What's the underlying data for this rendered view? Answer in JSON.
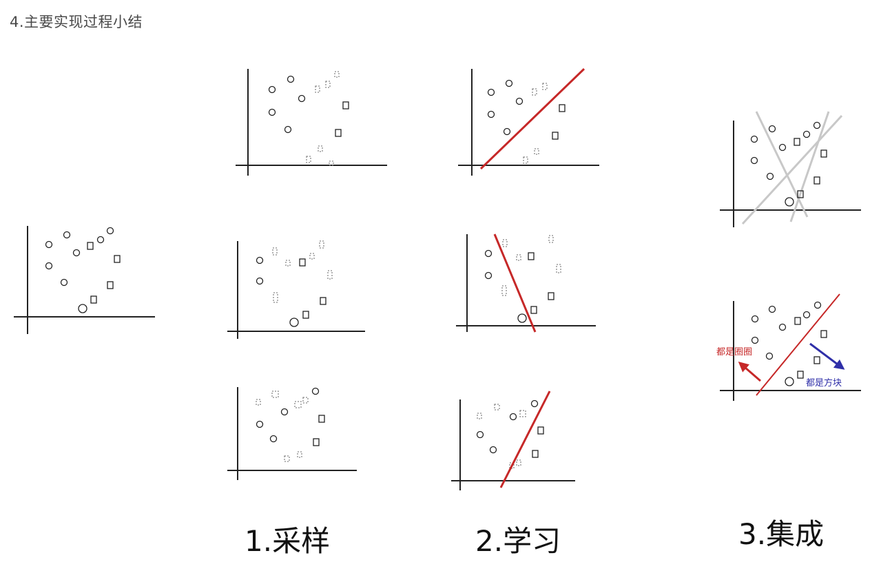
{
  "heading": "4.主要实现过程小结",
  "steps": {
    "sampling": "1.采样",
    "learning": "2.学习",
    "ensemble": "3.集成"
  },
  "annotations": {
    "circles_side": "都是圈圈",
    "squares_side": "都是方块"
  },
  "colors": {
    "classifier_line": "#c62828",
    "weak_line": "#c8c8c8",
    "circle_arrow": "#c62828",
    "square_arrow": "#2f2fa8",
    "axis": "#1a1a1a"
  }
}
